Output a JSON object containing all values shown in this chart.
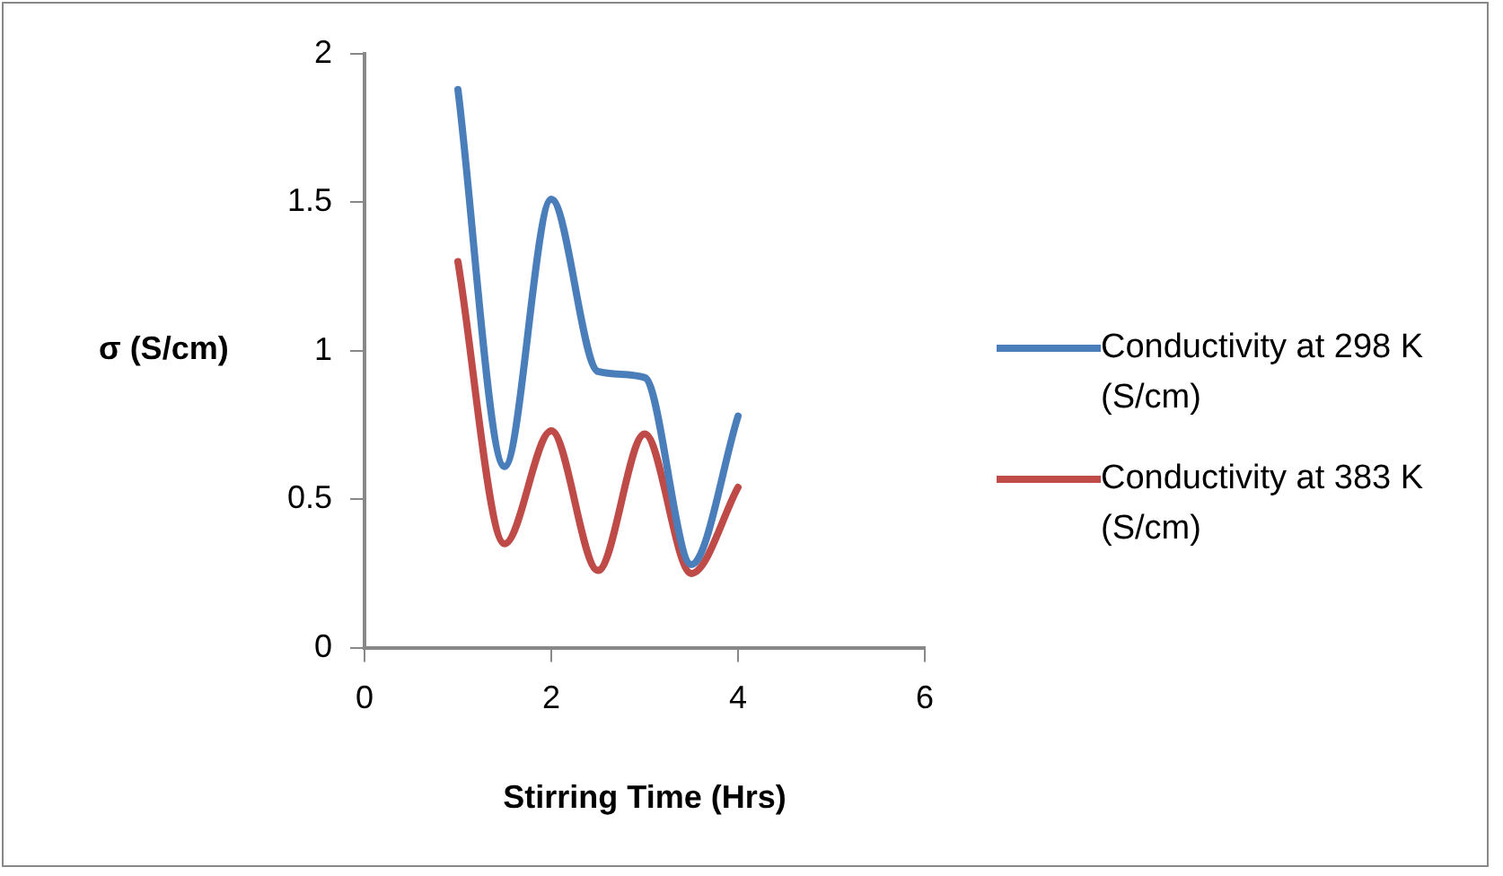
{
  "chart_data": {
    "type": "line",
    "xlabel": "Stirring Time (Hrs)",
    "ylabel": "σ (S/cm)",
    "x": [
      1,
      1.5,
      2,
      2.5,
      3,
      3.5,
      4
    ],
    "series": [
      {
        "name": "Conductivity at 298 K (S/cm)",
        "color": "#4a7ebb",
        "values": [
          1.88,
          0.61,
          1.51,
          0.93,
          0.91,
          0.28,
          0.78
        ]
      },
      {
        "name": "Conductivity at 383 K (S/cm)",
        "color": "#be4b48",
        "values": [
          1.3,
          0.35,
          0.73,
          0.26,
          0.72,
          0.25,
          0.54
        ]
      }
    ],
    "xlim": [
      0,
      6
    ],
    "xticks": [
      0,
      2,
      4,
      6
    ],
    "ylim": [
      0,
      2
    ],
    "yticks": [
      0,
      0.5,
      1,
      1.5,
      2
    ],
    "grid": false,
    "legend": "right",
    "marker": "none",
    "line_style": "solid"
  }
}
